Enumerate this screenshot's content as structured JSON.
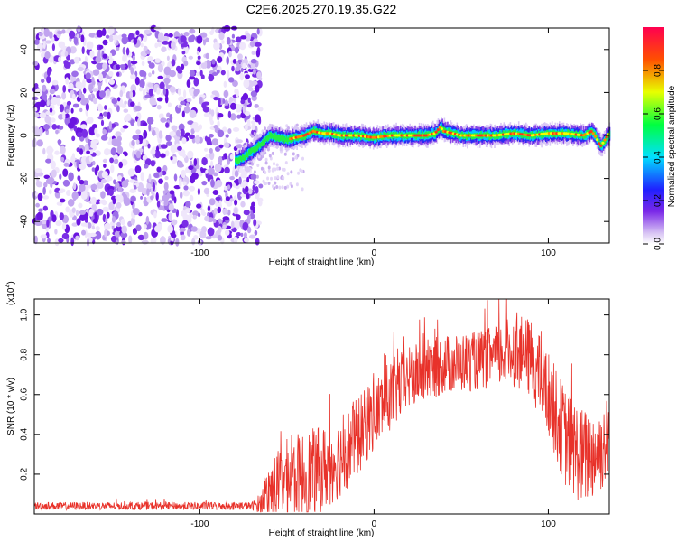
{
  "figure": {
    "title": "C2E6.2025.270.19.35.G22"
  },
  "chart_data": [
    {
      "type": "heatmap",
      "name": "spectrogram",
      "xlabel": "Height of straight line (km)",
      "ylabel": "Frequency (Hz)",
      "xlim": [
        -195,
        135
      ],
      "ylim": [
        -50,
        50
      ],
      "xticks": [
        -100,
        0,
        100
      ],
      "yticks": [
        -40,
        -20,
        0,
        20,
        40
      ],
      "noise_region_x": [
        -195,
        -65
      ],
      "signal_track": {
        "x": [
          -80,
          -75,
          -70,
          -65,
          -60,
          -55,
          -50,
          -45,
          -40,
          -35,
          -30,
          -25,
          -20,
          -10,
          0,
          10,
          20,
          30,
          35,
          38,
          40,
          45,
          50,
          60,
          70,
          80,
          90,
          100,
          110,
          120,
          125,
          128,
          130,
          135
        ],
        "y": [
          -12,
          -10,
          -7,
          -4,
          0,
          -1,
          -2,
          -1,
          0,
          2,
          1,
          1,
          0,
          0,
          -1,
          0,
          0,
          0,
          1,
          4,
          2,
          1,
          0,
          0,
          0,
          1,
          0,
          1,
          1,
          0,
          2,
          -2,
          -5,
          1
        ]
      },
      "colorbar": {
        "label": "Normalized spectral amplitude",
        "range": [
          0,
          1
        ],
        "ticks": [
          "0.0",
          "0.2",
          "0.4",
          "0.6",
          "0.8"
        ]
      }
    },
    {
      "type": "line",
      "name": "snr",
      "xlabel": "Height of straight line (km)",
      "ylabel": "SNR (10 * v/v)",
      "y_scale_label": "(x10",
      "y_scale_exp": "4",
      "y_scale_close": ")",
      "xlim": [
        -195,
        135
      ],
      "ylim": [
        0,
        1.08
      ],
      "xticks": [
        -100,
        0,
        100
      ],
      "yticks": [
        "0.2",
        "0.4",
        "0.6",
        "0.8",
        "1.0"
      ],
      "color": "#e8322a",
      "envelope": {
        "x": [
          -195,
          -70,
          -65,
          -60,
          -50,
          -40,
          -30,
          -20,
          -10,
          0,
          10,
          20,
          30,
          40,
          50,
          60,
          70,
          80,
          90,
          100,
          110,
          120,
          130,
          135
        ],
        "center": [
          0.04,
          0.04,
          0.05,
          0.12,
          0.18,
          0.2,
          0.22,
          0.28,
          0.38,
          0.5,
          0.6,
          0.68,
          0.72,
          0.75,
          0.76,
          0.77,
          0.79,
          0.82,
          0.78,
          0.6,
          0.38,
          0.28,
          0.32,
          0.4
        ],
        "amplitude": [
          0.02,
          0.02,
          0.06,
          0.15,
          0.2,
          0.22,
          0.22,
          0.2,
          0.2,
          0.18,
          0.18,
          0.16,
          0.16,
          0.15,
          0.15,
          0.15,
          0.16,
          0.18,
          0.2,
          0.22,
          0.25,
          0.25,
          0.22,
          0.22
        ]
      }
    }
  ]
}
